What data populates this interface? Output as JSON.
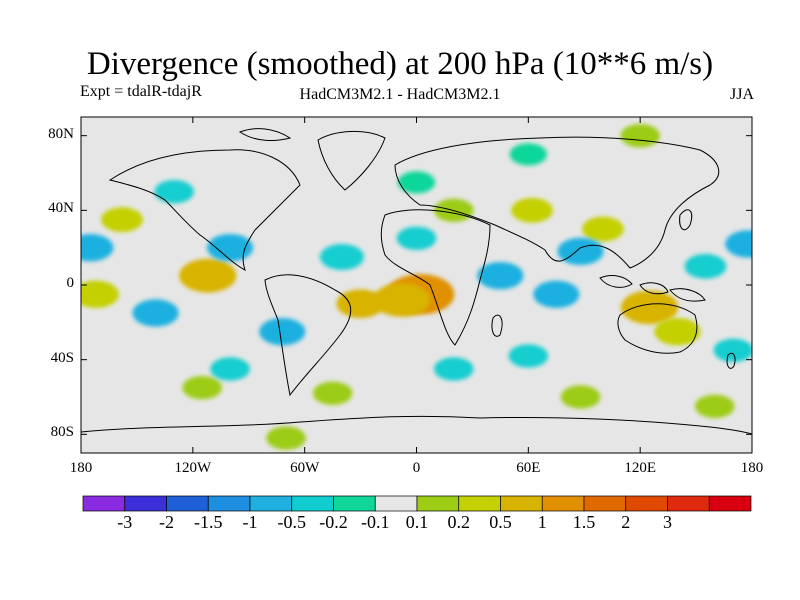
{
  "title": "Divergence (smoothed) at 200 hPa (10**6 m/s)",
  "subtitle_left": "Expt = tdalR-tdajR",
  "subtitle_center": "HadCM3M2.1 - HadCM3M2.1",
  "subtitle_right": "JJA",
  "x_axis": {
    "ticks": [
      {
        "lon": -180,
        "label": "180"
      },
      {
        "lon": -120,
        "label": "120W"
      },
      {
        "lon": -60,
        "label": "60W"
      },
      {
        "lon": 0,
        "label": "0"
      },
      {
        "lon": 60,
        "label": "60E"
      },
      {
        "lon": 120,
        "label": "120E"
      },
      {
        "lon": 180,
        "label": "180"
      }
    ]
  },
  "y_axis": {
    "ticks": [
      {
        "lat": 80,
        "label": "80N"
      },
      {
        "lat": 40,
        "label": "40N"
      },
      {
        "lat": 0,
        "label": "0"
      },
      {
        "lat": -40,
        "label": "40S"
      },
      {
        "lat": -80,
        "label": "80S"
      }
    ]
  },
  "colorbar": {
    "colors": [
      "#8a2be2",
      "#3a2fd8",
      "#1f5fd8",
      "#1e8fe0",
      "#1fb0e0",
      "#12cdd0",
      "#10d69a",
      "#e6e6e6",
      "#9ccc14",
      "#c4d000",
      "#d8b400",
      "#e09000",
      "#e06a00",
      "#e04a00",
      "#e02a10",
      "#d80010"
    ],
    "labels": [
      "-3",
      "-2",
      "-1.5",
      "-1",
      "-0.5",
      "-0.2",
      "-0.1",
      "0.1",
      "0.2",
      "0.5",
      "1",
      "1.5",
      "2",
      "3"
    ]
  },
  "chart_data": {
    "type": "heatmap",
    "variable": "Divergence (smoothed) at 200 hPa",
    "units": "10**6 m/s",
    "experiment": "tdalR-tdajR",
    "models": "HadCM3M2.1 - HadCM3M2.1",
    "season": "JJA",
    "lon_range": [
      -180,
      180
    ],
    "lat_range": [
      -90,
      90
    ],
    "contour_levels": [
      -3,
      -2,
      -1.5,
      -1,
      -0.5,
      -0.2,
      -0.1,
      0.1,
      0.2,
      0.5,
      1,
      1.5,
      2,
      3
    ],
    "features": [
      {
        "lon": 2,
        "lat": -5,
        "value": 1.5
      },
      {
        "lon": -8,
        "lat": -8,
        "value": 1
      },
      {
        "lon": -30,
        "lat": -10,
        "value": 0.6
      },
      {
        "lon": 125,
        "lat": -12,
        "value": 1
      },
      {
        "lon": 140,
        "lat": -25,
        "value": 0.5
      },
      {
        "lon": -112,
        "lat": 5,
        "value": 1
      },
      {
        "lon": -172,
        "lat": -5,
        "value": 0.5
      },
      {
        "lon": -158,
        "lat": 35,
        "value": 0.3
      },
      {
        "lon": 100,
        "lat": 30,
        "value": 0.3
      },
      {
        "lon": 20,
        "lat": 40,
        "value": 0.2
      },
      {
        "lon": 62,
        "lat": 40,
        "value": 0.3
      },
      {
        "lon": 120,
        "lat": 80,
        "value": 0.2
      },
      {
        "lon": -45,
        "lat": -58,
        "value": 0.2
      },
      {
        "lon": -115,
        "lat": -55,
        "value": 0.2
      },
      {
        "lon": 88,
        "lat": -60,
        "value": 0.2
      },
      {
        "lon": -70,
        "lat": -82,
        "value": 0.2
      },
      {
        "lon": 160,
        "lat": -65,
        "value": 0.2
      },
      {
        "lon": -175,
        "lat": 20,
        "value": -0.5
      },
      {
        "lon": -140,
        "lat": -15,
        "value": -0.5
      },
      {
        "lon": -100,
        "lat": 20,
        "value": -0.5
      },
      {
        "lon": -72,
        "lat": -25,
        "value": -0.5
      },
      {
        "lon": -40,
        "lat": 15,
        "value": -0.4
      },
      {
        "lon": 0,
        "lat": 25,
        "value": -0.2
      },
      {
        "lon": 45,
        "lat": 5,
        "value": -0.5
      },
      {
        "lon": 75,
        "lat": -5,
        "value": -0.5
      },
      {
        "lon": 88,
        "lat": 18,
        "value": -0.5
      },
      {
        "lon": 155,
        "lat": 10,
        "value": -0.3
      },
      {
        "lon": 178,
        "lat": 22,
        "value": -0.5
      },
      {
        "lon": 170,
        "lat": -35,
        "value": -0.2
      },
      {
        "lon": -130,
        "lat": 50,
        "value": -0.2
      },
      {
        "lon": -100,
        "lat": -45,
        "value": -0.2
      },
      {
        "lon": 60,
        "lat": -38,
        "value": -0.2
      },
      {
        "lon": 20,
        "lat": -45,
        "value": -0.2
      },
      {
        "lon": 0,
        "lat": 55,
        "value": -0.1
      },
      {
        "lon": 60,
        "lat": 70,
        "value": -0.1
      }
    ]
  }
}
